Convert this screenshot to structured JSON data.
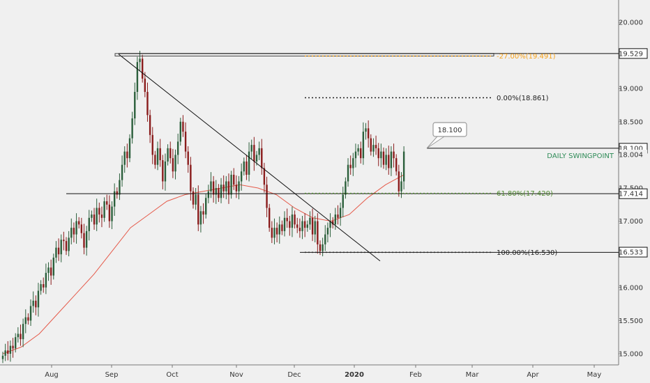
{
  "chart_data": {
    "type": "candlestick",
    "title": "",
    "xlabel": "",
    "ylabel": "",
    "x_ticks": [
      "Aug",
      "Sep",
      "Oct",
      "Nov",
      "Dec",
      "2020",
      "Feb",
      "Mar",
      "Apr",
      "May"
    ],
    "y_ticks": [
      15.0,
      15.5,
      16.0,
      16.5,
      17.0,
      17.5,
      18.0,
      18.5,
      19.0,
      19.5,
      20.0
    ],
    "y_tick_labels": [
      "15.000",
      "15.500",
      "16.000",
      "16.500",
      "17.000",
      "17.500",
      "18.000",
      "18.500",
      "19.000",
      "19.500",
      "20.000"
    ],
    "ylim": [
      14.85,
      20.35
    ],
    "grid": false,
    "colors": {
      "up": "#2b5f3b",
      "down": "#8a1c1c",
      "ma": "#e55a4a",
      "fib_orange": "#f7a21b",
      "fib_green": "#4f8a2f",
      "swing_text": "#2e8b57",
      "line": "#111111"
    },
    "closes": [
      14.97,
      15.05,
      15.0,
      15.12,
      15.08,
      15.25,
      15.3,
      15.22,
      15.45,
      15.55,
      15.5,
      15.72,
      15.8,
      15.7,
      15.95,
      16.05,
      16.0,
      16.22,
      16.3,
      16.18,
      16.45,
      16.6,
      16.5,
      16.72,
      16.7,
      16.55,
      16.75,
      16.9,
      16.8,
      17.0,
      16.95,
      16.82,
      16.6,
      16.85,
      17.05,
      17.1,
      16.95,
      17.2,
      17.1,
      17.05,
      17.3,
      17.25,
      17.0,
      17.22,
      17.45,
      17.4,
      17.62,
      17.85,
      18.05,
      17.95,
      18.25,
      18.55,
      18.95,
      19.4,
      19.45,
      19.15,
      18.95,
      18.6,
      18.3,
      18.0,
      17.85,
      18.1,
      17.92,
      17.6,
      17.9,
      18.1,
      17.95,
      17.75,
      18.0,
      18.2,
      18.5,
      18.35,
      18.05,
      17.85,
      17.45,
      17.25,
      17.4,
      16.95,
      17.15,
      17.1,
      17.35,
      17.45,
      17.6,
      17.4,
      17.5,
      17.35,
      17.55,
      17.45,
      17.6,
      17.4,
      17.7,
      17.55,
      17.45,
      17.6,
      17.75,
      17.9,
      17.7,
      18.05,
      18.15,
      17.9,
      18.0,
      18.1,
      17.8,
      17.55,
      17.2,
      16.9,
      16.75,
      16.9,
      16.8,
      16.95,
      16.85,
      17.05,
      17.0,
      16.9,
      17.1,
      16.95,
      16.9,
      16.85,
      17.0,
      16.9,
      16.95,
      17.05,
      16.8,
      17.0,
      16.65,
      16.55,
      16.65,
      16.8,
      16.9,
      17.0,
      16.95,
      17.1,
      17.05,
      17.2,
      17.4,
      17.6,
      17.85,
      17.8,
      17.95,
      18.05,
      18.1,
      17.95,
      18.35,
      18.4,
      18.25,
      18.05,
      18.15,
      18.1,
      17.95,
      18.05,
      17.85,
      18.0,
      17.8,
      18.05,
      17.95,
      17.75,
      17.45,
      17.6,
      18.05
    ],
    "ma": [
      15.0,
      15.1,
      15.3,
      15.6,
      15.9,
      16.2,
      16.55,
      16.9,
      17.1,
      17.3,
      17.4,
      17.45,
      17.5,
      17.55,
      17.5,
      17.4,
      17.2,
      17.05,
      17.0,
      17.1,
      17.35,
      17.55,
      17.7
    ],
    "levels": {
      "horizontal_1": 19.529,
      "swing": 18.1,
      "fib_0": 18.861,
      "fib_61": 17.42,
      "support": 17.414,
      "fib_100": 16.53
    },
    "annotations": {
      "fib_neg27": "-27.00%(19.491)",
      "fib_0": "0.00%(18.861)",
      "fib_61": "61.80%(17.420)",
      "fib_100": "100.00%(16.530)",
      "callout": "18.100",
      "swing_label": "DAILY SWINGPOINT"
    },
    "price_labels": [
      "19.529",
      "18.100",
      "18.004",
      "17.414",
      "16.533"
    ]
  }
}
